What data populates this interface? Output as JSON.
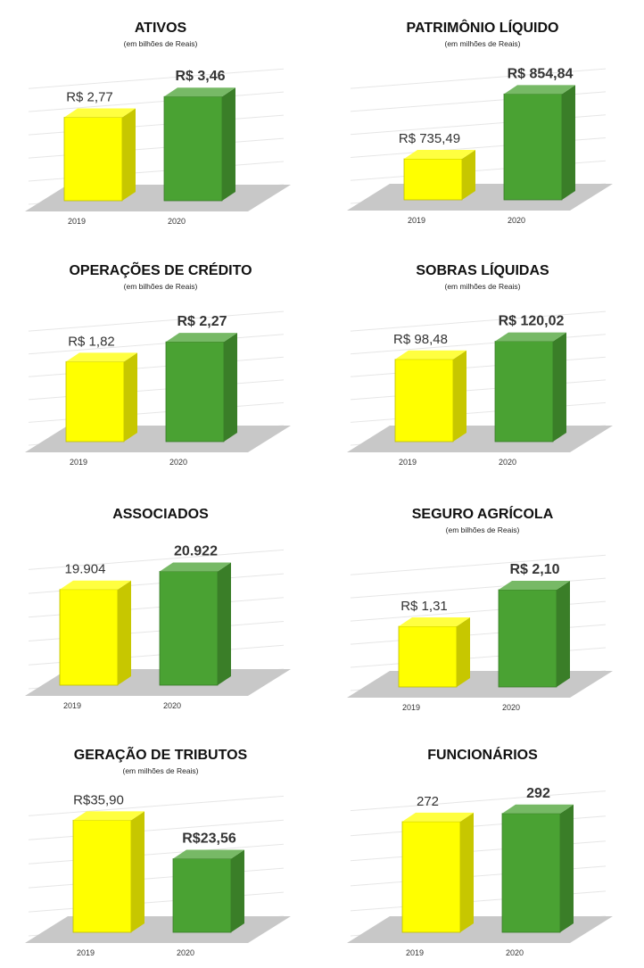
{
  "colors": {
    "bar_2019": "#ffff00",
    "bar_2020": "#4aa233",
    "floor": "#c8c8c8",
    "grid": "#e6e6e6"
  },
  "chart_data": [
    {
      "type": "bar",
      "title": "ATIVOS",
      "subtitle": "(em bilhões de Reais)",
      "categories": [
        "2019",
        "2020"
      ],
      "values": [
        2.77,
        3.46
      ],
      "value_labels": [
        "R$ 2,77",
        "R$ 3,46"
      ],
      "ylim": [
        0,
        4.0
      ],
      "grid": true,
      "style": "3d-column"
    },
    {
      "type": "bar",
      "title": "PATRIMÔNIO LÍQUIDO",
      "subtitle": "(em milhões de Reais)",
      "categories": [
        "2019",
        "2020"
      ],
      "values": [
        735.49,
        854.84
      ],
      "value_labels": [
        "R$ 735,49",
        "R$ 854,84"
      ],
      "ylim": [
        660,
        880
      ],
      "grid": true,
      "style": "3d-column"
    },
    {
      "type": "bar",
      "title": "OPERAÇÕES DE CRÉDITO",
      "subtitle": "(em bilhões de Reais)",
      "categories": [
        "2019",
        "2020"
      ],
      "values": [
        1.82,
        2.27
      ],
      "value_labels": [
        "R$ 1,82",
        "R$ 2,27"
      ],
      "ylim": [
        0,
        2.7
      ],
      "grid": true,
      "style": "3d-column"
    },
    {
      "type": "bar",
      "title": "SOBRAS LÍQUIDAS",
      "subtitle": "(em milhões de Reais)",
      "categories": [
        "2019",
        "2020"
      ],
      "values": [
        98.48,
        120.02
      ],
      "value_labels": [
        "R$ 98,48",
        "R$ 120,02"
      ],
      "ylim": [
        0,
        142
      ],
      "grid": true,
      "style": "3d-column"
    },
    {
      "type": "bar",
      "title": "ASSOCIADOS",
      "subtitle": "",
      "categories": [
        "2019",
        "2020"
      ],
      "values": [
        19904,
        20922
      ],
      "value_labels": [
        "19.904",
        "20.922"
      ],
      "ylim": [
        14500,
        21500
      ],
      "grid": true,
      "style": "3d-column"
    },
    {
      "type": "bar",
      "title": "SEGURO AGRÍCOLA",
      "subtitle": "(em bilhões de Reais)",
      "categories": [
        "2019",
        "2020"
      ],
      "values": [
        1.31,
        2.1
      ],
      "value_labels": [
        "R$ 1,31",
        "R$ 2,10"
      ],
      "ylim": [
        0,
        2.6
      ],
      "grid": true,
      "style": "3d-column"
    },
    {
      "type": "bar",
      "title": "GERAÇÃO DE TRIBUTOS",
      "subtitle": "(em milhões de Reais)",
      "categories": [
        "2019",
        "2020"
      ],
      "values": [
        35.9,
        23.56
      ],
      "value_labels": [
        "R$35,90",
        "R$23,56"
      ],
      "ylim": [
        0,
        40
      ],
      "grid": true,
      "style": "3d-column"
    },
    {
      "type": "bar",
      "title": "FUNCIONÁRIOS",
      "subtitle": "",
      "categories": [
        "2019",
        "2020"
      ],
      "values": [
        272,
        292
      ],
      "value_labels": [
        "272",
        "292"
      ],
      "ylim": [
        0,
        320
      ],
      "grid": true,
      "style": "3d-column"
    }
  ]
}
